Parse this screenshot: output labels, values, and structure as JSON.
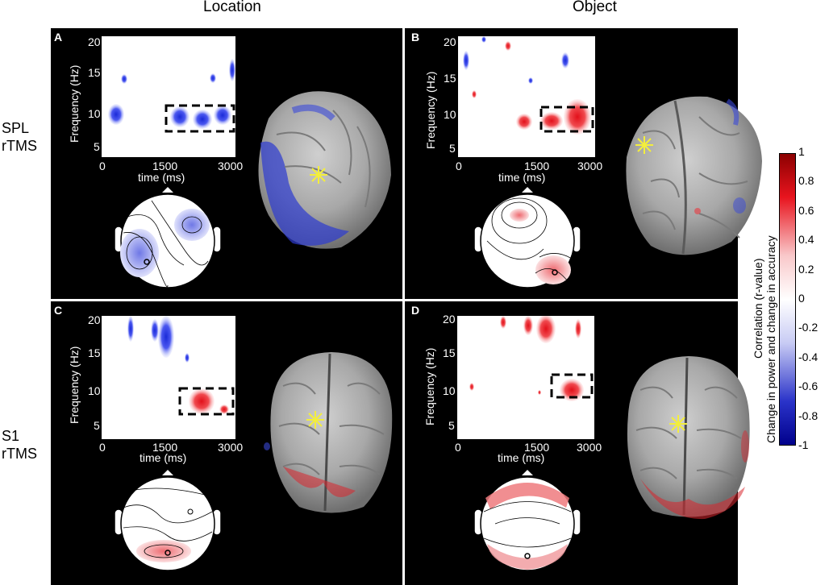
{
  "columns": [
    "Location",
    "Object"
  ],
  "rows": [
    {
      "line1": "SPL",
      "line2": "rTMS"
    },
    {
      "line1": "S1",
      "line2": "rTMS"
    }
  ],
  "panels": [
    {
      "letter": "A",
      "condition": "Location / SPL rTMS"
    },
    {
      "letter": "B",
      "condition": "Object / SPL rTMS"
    },
    {
      "letter": "C",
      "condition": "Location / S1 rTMS"
    },
    {
      "letter": "D",
      "condition": "Object / S1 rTMS"
    }
  ],
  "axes": {
    "ylabel": "Frequency (Hz)",
    "xlabel": "time (ms)",
    "yticks": [
      "20",
      "15",
      "10",
      "5"
    ],
    "xticks": [
      "0",
      "1500",
      "3000"
    ]
  },
  "colorbar": {
    "title_line1": "Correlation (r-value)",
    "title_line2": "Change in power and change in accuracy",
    "ticks": [
      "1",
      "0.8",
      "0.6",
      "0.4",
      "0.2",
      "0",
      "-0.2",
      "-0.4",
      "-0.6",
      "-0.8",
      "-1"
    ],
    "range": [
      -1,
      1
    ],
    "colors": {
      "max": "#8b0000",
      "mid": "#ffffff",
      "min": "#00008b"
    }
  }
}
